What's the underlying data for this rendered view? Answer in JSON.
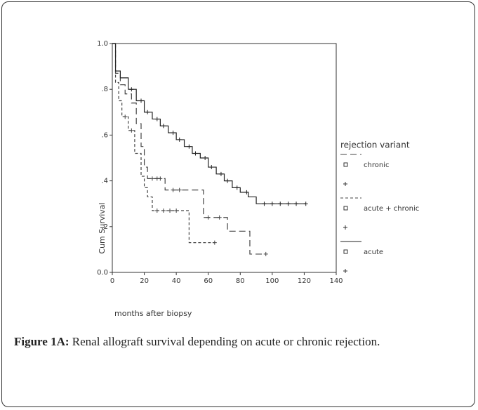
{
  "chart_data": {
    "type": "step",
    "xlabel": "months after biopsy",
    "ylabel": "Cum Survival",
    "legend_title": "rejection variant",
    "xlim": [
      0,
      140
    ],
    "xticks": [
      0,
      20,
      40,
      60,
      80,
      100,
      120,
      140
    ],
    "ylim": [
      0,
      1
    ],
    "yticks": [
      {
        "value": 0,
        "label": "0.0"
      },
      {
        "value": 0.2,
        "label": ".2"
      },
      {
        "value": 0.4,
        "label": ".4"
      },
      {
        "value": 0.6,
        "label": ".6"
      },
      {
        "value": 0.8,
        "label": ".8"
      },
      {
        "value": 1,
        "label": "1.0"
      }
    ],
    "series": [
      {
        "name": "chronic",
        "color": "#444444",
        "dash": "9 5",
        "x": [
          0,
          2,
          5,
          8,
          12,
          15,
          18,
          20,
          22,
          33,
          57,
          72,
          86,
          96
        ],
        "values": [
          1,
          0.87,
          0.82,
          0.78,
          0.74,
          0.65,
          0.55,
          0.46,
          0.41,
          0.36,
          0.24,
          0.18,
          0.08,
          0.08
        ],
        "censored": [
          25,
          28,
          30,
          38,
          42,
          60,
          67,
          96
        ]
      },
      {
        "name": "acute + chronic",
        "color": "#444444",
        "dash": "4 3",
        "x": [
          0,
          2,
          4,
          6,
          10,
          14,
          18,
          20,
          22,
          25,
          48,
          64
        ],
        "values": [
          1,
          0.83,
          0.75,
          0.68,
          0.62,
          0.52,
          0.42,
          0.37,
          0.33,
          0.27,
          0.13,
          0.13
        ],
        "censored": [
          8,
          12,
          28,
          32,
          36,
          40,
          64
        ]
      },
      {
        "name": "acute",
        "color": "#222222",
        "dash": "none",
        "x": [
          0,
          2,
          5,
          10,
          15,
          20,
          25,
          30,
          35,
          40,
          45,
          50,
          55,
          60,
          65,
          70,
          75,
          80,
          85,
          90,
          121
        ],
        "values": [
          1,
          0.88,
          0.85,
          0.8,
          0.75,
          0.7,
          0.67,
          0.64,
          0.61,
          0.58,
          0.55,
          0.52,
          0.5,
          0.46,
          0.43,
          0.4,
          0.37,
          0.35,
          0.33,
          0.3,
          0.3
        ],
        "censored": [
          12,
          18,
          22,
          28,
          32,
          38,
          42,
          48,
          52,
          58,
          62,
          68,
          72,
          78,
          84,
          95,
          100,
          105,
          110,
          115,
          121
        ]
      }
    ]
  },
  "caption": {
    "label": "Figure 1A:",
    "text": "Renal allograft survival depending on acute or chronic rejection."
  }
}
